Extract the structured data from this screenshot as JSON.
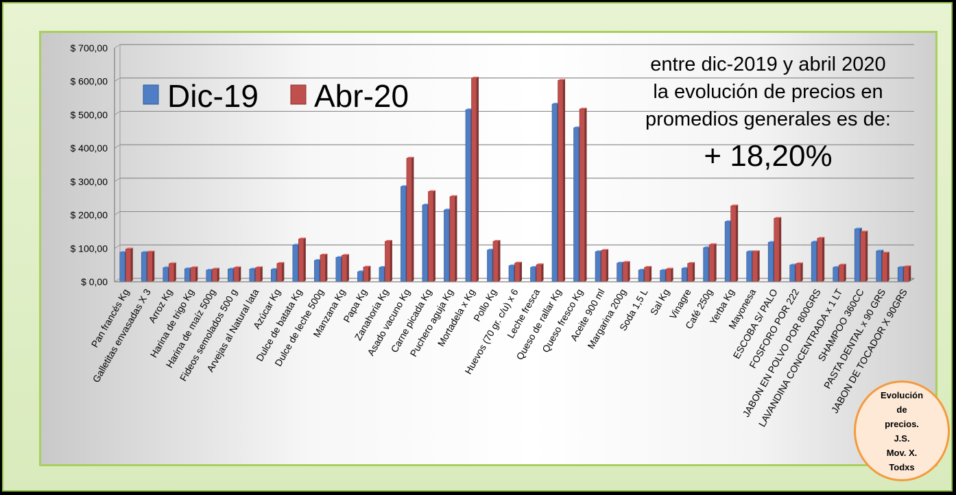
{
  "chart_data": {
    "type": "bar",
    "title": "",
    "xlabel": "",
    "ylabel": "",
    "ylim": [
      0,
      700
    ],
    "yticks": [
      "$ 0,00",
      "$ 100,00",
      "$ 200,00",
      "$ 300,00",
      "$ 400,00",
      "$ 500,00",
      "$ 600,00",
      "$ 700,00"
    ],
    "grid": true,
    "legend_placement": "top-left",
    "categories": [
      "Pan francés Kg",
      "Galletitas envasadas X 3",
      "Arroz Kg",
      "Harina de trigo Kg",
      "Harina de maíz 500g",
      "Fideos semolados 500 g",
      "Arvejas al Natural lata",
      "Azúcar Kg",
      "Dulce de batata Kg",
      "Dulce de leche 500g",
      "Manzana Kg",
      "Papa  Kg",
      "Zanahoria  Kg",
      "Asado vacuno Kg",
      "Carne picada Kg",
      "Puchero aguja Kg",
      "Mortadela x Kg",
      "Pollo Kg",
      "Huevos (70 gr. c/u) x 6",
      "Leche fresca",
      "Queso de rallar Kg",
      "Queso fresco Kg",
      "Aceite 900 ml",
      "Margarina  200g",
      "Soda 1,5 L",
      "Sal  Kg",
      "Vinagre",
      "Café 250g",
      "Yerba Kg",
      "Mayonesa",
      "ESCOBA S/ PALO",
      "FOSFORO POR 222",
      "JABON EN POLVO  POR 800GRS",
      "LAVANDINA CONCENTRADA x 1 LT",
      "SHAMPOO 360CC",
      "PASTA DENTAL x 90 GRS",
      "JABON DE TOCADOR X 90GRS"
    ],
    "series": [
      {
        "name": "Dic-19",
        "color": "#4f7ec4",
        "values": [
          88,
          88,
          42,
          39,
          35,
          38,
          38,
          37,
          110,
          64,
          73,
          30,
          43,
          285,
          230,
          215,
          515,
          95,
          48,
          43,
          532,
          461,
          90,
          56,
          35,
          34,
          40,
          102,
          180,
          90,
          118,
          50,
          119,
          43,
          158,
          92,
          43
        ]
      },
      {
        "name": "Abr-20",
        "color": "#c0504d",
        "values": [
          98,
          89,
          54,
          42,
          38,
          42,
          42,
          55,
          128,
          80,
          79,
          44,
          121,
          370,
          270,
          255,
          610,
          121,
          56,
          51,
          603,
          517,
          94,
          58,
          43,
          38,
          55,
          111,
          227,
          90,
          190,
          54,
          130,
          50,
          149,
          86,
          45
        ]
      }
    ],
    "annotations": {
      "line1": "entre dic-2019 y abril 2020",
      "line2": "la evolución de precios en",
      "line3": "promedios generales es de:",
      "value": "+ 18,20%"
    }
  },
  "badge": {
    "lines": [
      "Evolución",
      "de",
      "precios.",
      "J.S.",
      "Mov. X.",
      "Todxs"
    ]
  }
}
